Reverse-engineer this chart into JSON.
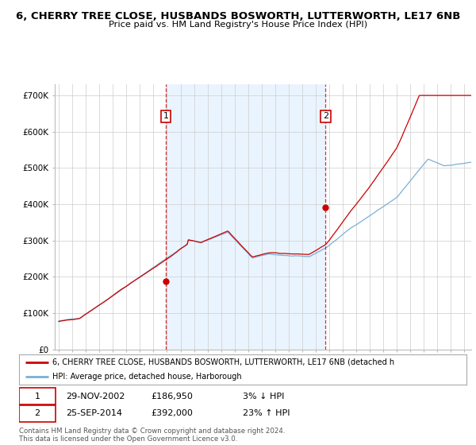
{
  "title": "6, CHERRY TREE CLOSE, HUSBANDS BOSWORTH, LUTTERWORTH, LE17 6NB",
  "subtitle": "Price paid vs. HM Land Registry's House Price Index (HPI)",
  "ylabel_ticks": [
    "£0",
    "£100K",
    "£200K",
    "£300K",
    "£400K",
    "£500K",
    "£600K",
    "£700K"
  ],
  "ytick_values": [
    0,
    100000,
    200000,
    300000,
    400000,
    500000,
    600000,
    700000
  ],
  "ylim": [
    0,
    730000
  ],
  "xlim_start": 1994.7,
  "xlim_end": 2025.5,
  "marker1_x": 2002.91,
  "marker1_y": 186950,
  "marker2_x": 2014.73,
  "marker2_y": 392000,
  "sale_color": "#cc0000",
  "hpi_color": "#7ab0d4",
  "vline_color": "#cc0000",
  "shade_color": "#ddeeff",
  "background_color": "#ffffff",
  "grid_color": "#cccccc",
  "legend_line1": "6, CHERRY TREE CLOSE, HUSBANDS BOSWORTH, LUTTERWORTH, LE17 6NB (detached h",
  "legend_line2": "HPI: Average price, detached house, Harborough",
  "table_row1": [
    "1",
    "29-NOV-2002",
    "£186,950",
    "3% ↓ HPI"
  ],
  "table_row2": [
    "2",
    "25-SEP-2014",
    "£392,000",
    "23% ↑ HPI"
  ],
  "footnote1": "Contains HM Land Registry data © Crown copyright and database right 2024.",
  "footnote2": "This data is licensed under the Open Government Licence v3.0."
}
